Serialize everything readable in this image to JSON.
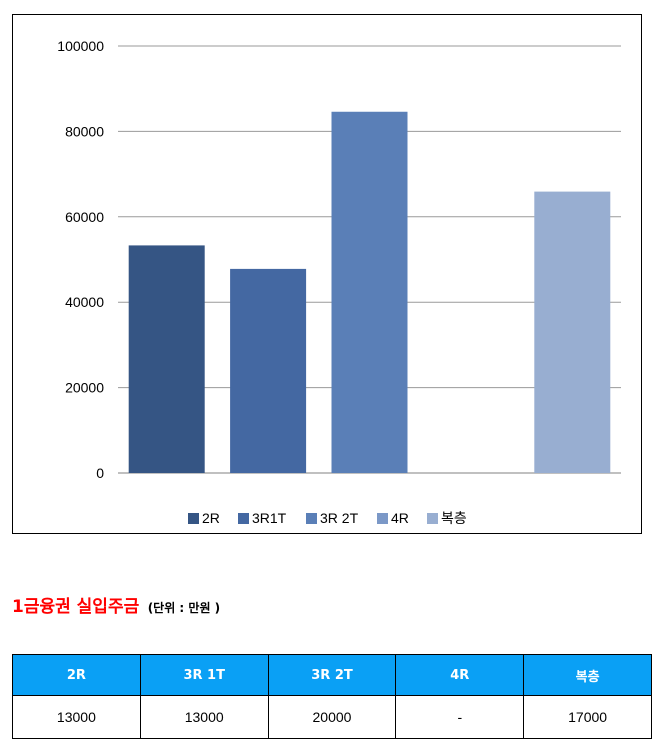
{
  "chart_data": {
    "type": "bar",
    "categories": [
      "2R",
      "3R1T",
      "3R 2T",
      "4R",
      "복층"
    ],
    "values": [
      53300,
      47800,
      84600,
      null,
      65900
    ],
    "colors": [
      "#355584",
      "#4468a2",
      "#5a7fb7",
      "#7b98c7",
      "#98aed1"
    ],
    "title": "",
    "xlabel": "",
    "ylabel": "",
    "ylim": [
      0,
      100000
    ],
    "yticks": [
      0,
      20000,
      40000,
      60000,
      80000,
      100000
    ],
    "grid": true,
    "legend_position": "bottom",
    "legend": [
      "2R",
      "3R1T",
      "3R 2T",
      "4R",
      "복층"
    ]
  },
  "section": {
    "title": "1금융권 실입주금",
    "unit_note": "(단위 : 만원 )"
  },
  "table": {
    "header_color": "#0aa0f5",
    "headers": [
      "2R",
      "3R 1T",
      "3R 2T",
      "4R",
      "복층"
    ],
    "rows": [
      [
        "13000",
        "13000",
        "20000",
        "-",
        "17000"
      ]
    ]
  }
}
